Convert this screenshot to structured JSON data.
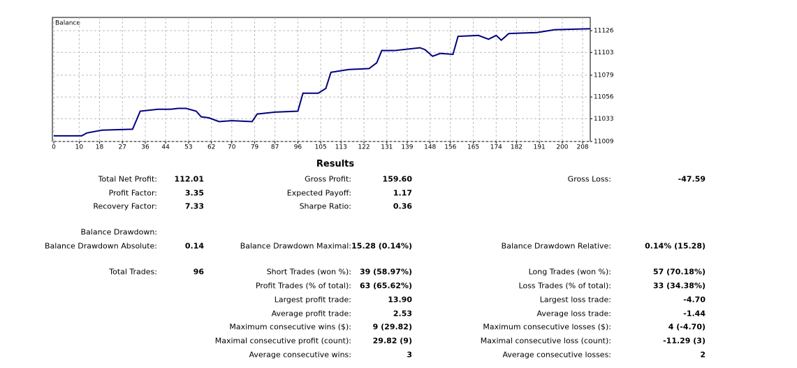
{
  "chart_data": {
    "type": "line",
    "title": "Balance",
    "x": [
      0,
      11,
      13,
      19,
      31,
      34,
      41,
      46,
      49,
      52,
      56,
      58,
      61,
      65,
      70,
      78,
      80,
      87,
      96,
      98,
      104,
      107,
      109,
      116,
      124,
      127,
      129,
      134,
      144,
      146,
      149,
      152,
      157,
      159,
      167,
      171,
      174,
      176,
      179,
      190,
      197,
      211
    ],
    "series": [
      {
        "name": "Balance",
        "color": "#000080",
        "values": [
          11015,
          11015,
          11018,
          11021,
          11022,
          11041,
          11043,
          11043,
          11044,
          11044,
          11041,
          11035,
          11034,
          11030,
          11031,
          11030,
          11038,
          11040,
          11041,
          11060,
          11060,
          11065,
          11082,
          11085,
          11086,
          11092,
          11105,
          11105,
          11108,
          11106,
          11099,
          11102,
          11101,
          11120,
          11121,
          11117,
          11121,
          11116,
          11123,
          11124,
          11127,
          11128
        ]
      }
    ],
    "xlim": [
      0,
      211
    ],
    "xticks": [
      0,
      10,
      18,
      27,
      36,
      44,
      53,
      62,
      70,
      79,
      87,
      96,
      105,
      113,
      122,
      131,
      139,
      148,
      156,
      165,
      174,
      182,
      191,
      200,
      208
    ],
    "ylim": [
      11009,
      11140
    ],
    "yticks": [
      11009,
      11033,
      11056,
      11079,
      11103,
      11126
    ],
    "grid": true
  },
  "results": {
    "title": "Results",
    "rows": [
      {
        "left": {
          "label": "Total Net Profit:",
          "value": "112.01"
        },
        "middle": {
          "label": "Gross Profit:",
          "value": "159.60"
        },
        "right": {
          "label": "Gross Loss:",
          "value": "-47.59"
        }
      },
      {
        "left": {
          "label": "Profit Factor:",
          "value": "3.35"
        },
        "middle": {
          "label": "Expected Payoff:",
          "value": "1.17"
        }
      },
      {
        "left": {
          "label": "Recovery Factor:",
          "value": "7.33"
        },
        "middle": {
          "label": "Sharpe Ratio:",
          "value": "0.36"
        }
      },
      {
        "left": {
          "label": "Balance Drawdown:"
        }
      },
      {
        "left": {
          "label": "Balance Drawdown Absolute:",
          "value": "0.14"
        },
        "middle": {
          "label": "Balance Drawdown Maximal:",
          "value": "15.28 (0.14%)"
        },
        "right": {
          "label": "Balance Drawdown Relative:",
          "value": "0.14% (15.28)"
        }
      },
      {
        "left": {
          "label": "Total Trades:",
          "value": "96"
        },
        "middle": {
          "label": "Short Trades (won %):",
          "value": "39 (58.97%)"
        },
        "right": {
          "label": "Long Trades (won %):",
          "value": "57 (70.18%)"
        }
      },
      {
        "middle": {
          "label": "Profit Trades (% of total):",
          "value": "63 (65.62%)"
        },
        "right": {
          "label": "Loss Trades (% of total):",
          "value": "33 (34.38%)"
        }
      },
      {
        "middle": {
          "label": "Largest profit trade:",
          "value": "13.90"
        },
        "right": {
          "label": "Largest loss trade:",
          "value": "-4.70"
        }
      },
      {
        "middle": {
          "label": "Average profit trade:",
          "value": "2.53"
        },
        "right": {
          "label": "Average loss trade:",
          "value": "-1.44"
        }
      },
      {
        "middle": {
          "label": "Maximum consecutive wins ($):",
          "value": "9 (29.82)"
        },
        "right": {
          "label": "Maximum consecutive losses ($):",
          "value": "4 (-4.70)"
        }
      },
      {
        "middle": {
          "label": "Maximal consecutive profit (count):",
          "value": "29.82 (9)"
        },
        "right": {
          "label": "Maximal consecutive loss (count):",
          "value": "-11.29 (3)"
        }
      },
      {
        "middle": {
          "label": "Average consecutive wins:",
          "value": "3"
        },
        "right": {
          "label": "Average consecutive losses:",
          "value": "2"
        }
      }
    ]
  }
}
